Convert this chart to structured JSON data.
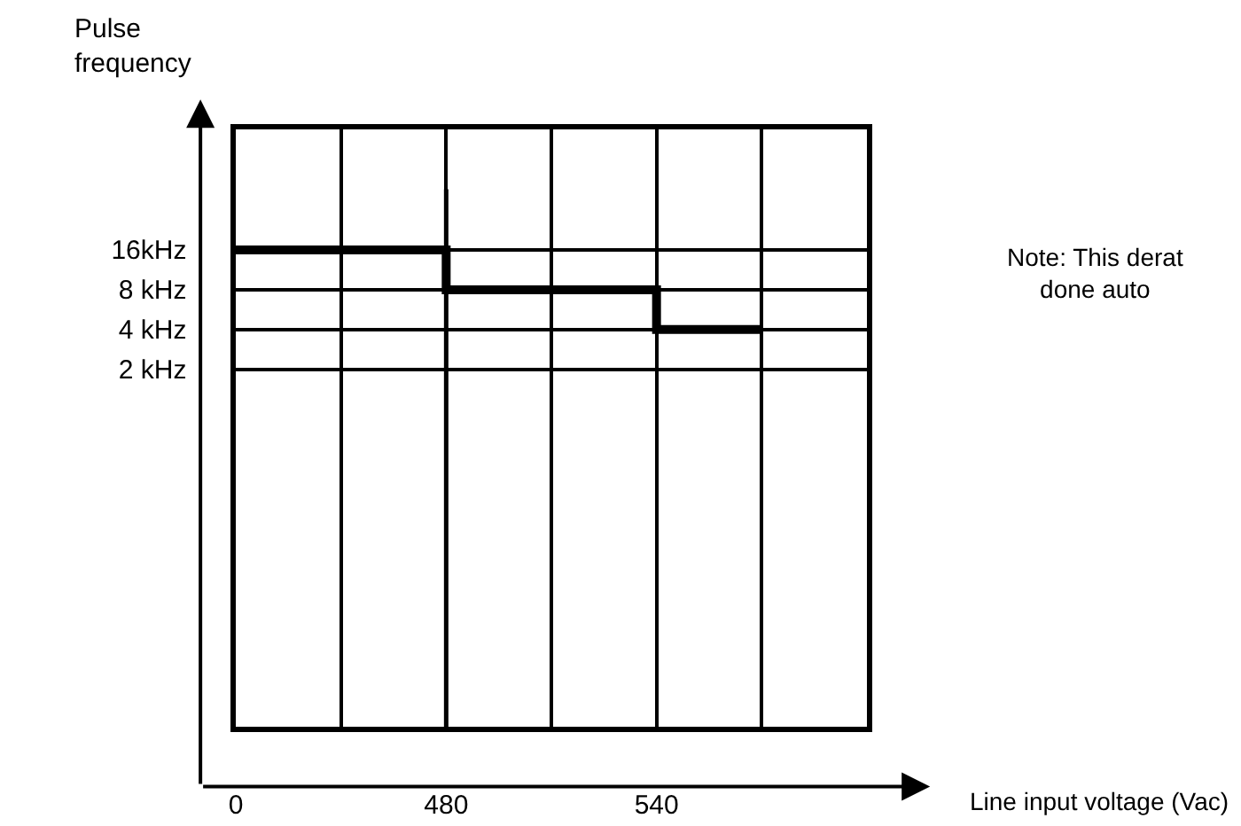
{
  "chart_data": {
    "type": "step",
    "xlabel": "Line input voltage (Vac)",
    "ylabel": "Pulse\nfrequency",
    "categories": [
      "0",
      null,
      "480",
      null,
      "540",
      null,
      null
    ],
    "values": [
      16,
      16,
      8,
      8,
      4,
      4,
      null
    ],
    "color": "#000000",
    "ylim": [
      0.004,
      130
    ],
    "log": true,
    "yticks": [
      {
        "value": 16,
        "label": "16kHz"
      },
      {
        "value": 8,
        "label": "8 kHz"
      },
      {
        "value": 4,
        "label": "4 kHz"
      },
      {
        "value": 2,
        "label": "2 kHz"
      }
    ],
    "ref_lines": [
      {
        "axis": "x",
        "value": "480",
        "label": null
      }
    ],
    "grid": true,
    "legend": false,
    "marker": "none",
    "line_style": "solid",
    "annotations": [
      "Note: This derat\ndone auto"
    ]
  }
}
